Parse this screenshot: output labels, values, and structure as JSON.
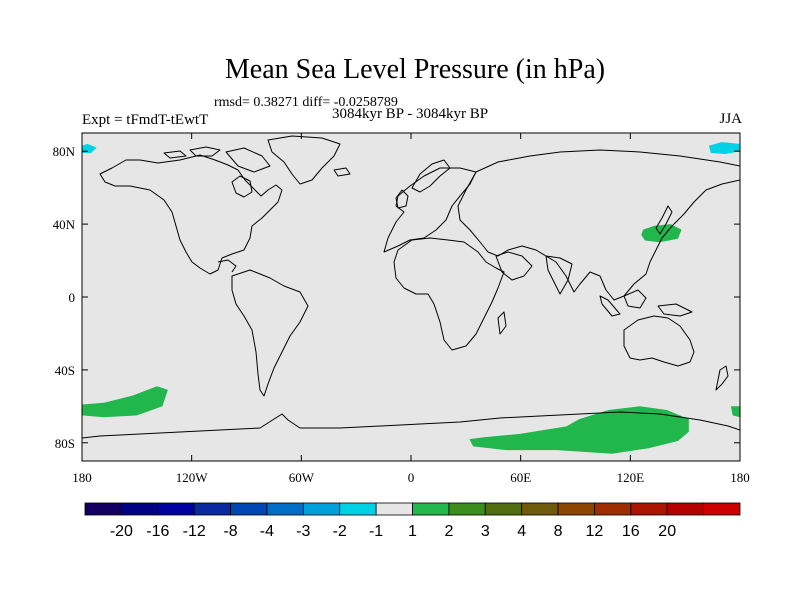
{
  "title": "Mean Sea Level Pressure (in hPa)",
  "stats_text": "rmsd= 0.38271 diff= -0.0258789",
  "period_text": "3084kyr BP - 3084kyr BP",
  "experiment_label": "Expt = tFmdT-tEwtT",
  "season_label": "JJA",
  "map": {
    "projection": "cylindrical-equidistant",
    "lon_range": [
      -180,
      180
    ],
    "lat_range": [
      -90,
      90
    ],
    "background_color": "#e6e6e6",
    "x_ticks": [
      {
        "lon": -180,
        "label": "180"
      },
      {
        "lon": -120,
        "label": "120W"
      },
      {
        "lon": -60,
        "label": "60W"
      },
      {
        "lon": 0,
        "label": "0"
      },
      {
        "lon": 60,
        "label": "60E"
      },
      {
        "lon": 120,
        "label": "120E"
      },
      {
        "lon": 180,
        "label": "180"
      }
    ],
    "y_ticks": [
      {
        "lat": 80,
        "label": "80N"
      },
      {
        "lat": 40,
        "label": "40N"
      },
      {
        "lat": 0,
        "label": "0"
      },
      {
        "lat": -40,
        "label": "40S"
      },
      {
        "lat": -80,
        "label": "80S"
      }
    ],
    "anomaly_regions": [
      {
        "name": "arctic-west-low",
        "level": "-1",
        "color": "#00d2e6",
        "points": [
          [
            -180,
            83
          ],
          [
            -177,
            84
          ],
          [
            -172,
            82
          ],
          [
            -175,
            79
          ],
          [
            -180,
            79
          ]
        ]
      },
      {
        "name": "arctic-east-low",
        "level": "-1",
        "color": "#00d2e6",
        "points": [
          [
            180,
            84
          ],
          [
            170,
            85
          ],
          [
            163,
            83
          ],
          [
            164,
            79
          ],
          [
            172,
            78.5
          ],
          [
            180,
            80
          ]
        ]
      },
      {
        "name": "japan-sea-high",
        "level": "1",
        "color": "#21b74c",
        "points": [
          [
            127,
            37
          ],
          [
            133,
            39
          ],
          [
            142,
            40
          ],
          [
            148,
            37
          ],
          [
            146,
            32
          ],
          [
            136,
            30
          ],
          [
            128,
            31
          ],
          [
            126,
            34
          ]
        ]
      },
      {
        "name": "south-pacific-high",
        "level": "1",
        "color": "#21b74c",
        "points": [
          [
            -180,
            -59
          ],
          [
            -168,
            -58
          ],
          [
            -152,
            -54
          ],
          [
            -139,
            -49
          ],
          [
            -133,
            -51
          ],
          [
            -136,
            -60
          ],
          [
            -150,
            -65
          ],
          [
            -168,
            -66
          ],
          [
            -180,
            -65
          ]
        ]
      },
      {
        "name": "southern-ocean-high-east",
        "level": "1",
        "color": "#21b74c",
        "points": [
          [
            175,
            -60
          ],
          [
            180,
            -60
          ],
          [
            180,
            -66
          ],
          [
            176,
            -65
          ]
        ]
      },
      {
        "name": "antarctic-coast-high",
        "level": "1",
        "color": "#21b74c",
        "points": [
          [
            32,
            -78
          ],
          [
            40,
            -77
          ],
          [
            60,
            -75
          ],
          [
            85,
            -71
          ],
          [
            92,
            -67
          ],
          [
            108,
            -62
          ],
          [
            125,
            -60
          ],
          [
            140,
            -62
          ],
          [
            152,
            -67
          ],
          [
            152,
            -74
          ],
          [
            146,
            -79
          ],
          [
            130,
            -83
          ],
          [
            110,
            -86
          ],
          [
            80,
            -84
          ],
          [
            52,
            -84
          ],
          [
            34,
            -82
          ]
        ]
      }
    ]
  },
  "colorbar": {
    "colors": [
      "#140060",
      "#000082",
      "#0000a0",
      "#0a28a0",
      "#0046b4",
      "#006ec8",
      "#00a0dc",
      "#00d2e6",
      "#e6e6e6",
      "#21b74c",
      "#3c8c1e",
      "#506e10",
      "#6e5a0a",
      "#8c4600",
      "#a02d00",
      "#aa1400",
      "#b40000",
      "#cc0000"
    ],
    "labels": [
      "-20",
      "-16",
      "-12",
      "-8",
      "-4",
      "-3",
      "-2",
      "-1",
      "1",
      "2",
      "3",
      "4",
      "8",
      "12",
      "16",
      "20"
    ]
  }
}
